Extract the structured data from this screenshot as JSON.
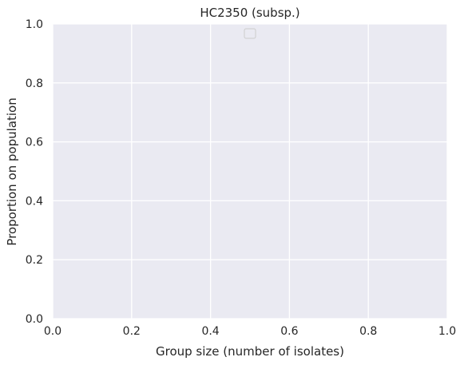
{
  "chart_data": {
    "type": "bar",
    "title": "HC2350 (subsp.)",
    "xlabel": "Group size (number of isolates)",
    "ylabel": "Proportion on population",
    "xlim": [
      0.0,
      1.0
    ],
    "ylim": [
      0.0,
      1.0
    ],
    "xticks": [
      "0.0",
      "0.2",
      "0.4",
      "0.6",
      "0.8",
      "1.0"
    ],
    "yticks": [
      "0.0",
      "0.2",
      "0.4",
      "0.6",
      "0.8",
      "1.0"
    ],
    "grid": true,
    "legend": {
      "placement": "top-center",
      "entries": []
    },
    "series": []
  },
  "colors": {
    "plot_background": "#EAEAF2",
    "grid": "#FFFFFF",
    "text": "#262626",
    "legend_border": "#CCCCCC"
  }
}
